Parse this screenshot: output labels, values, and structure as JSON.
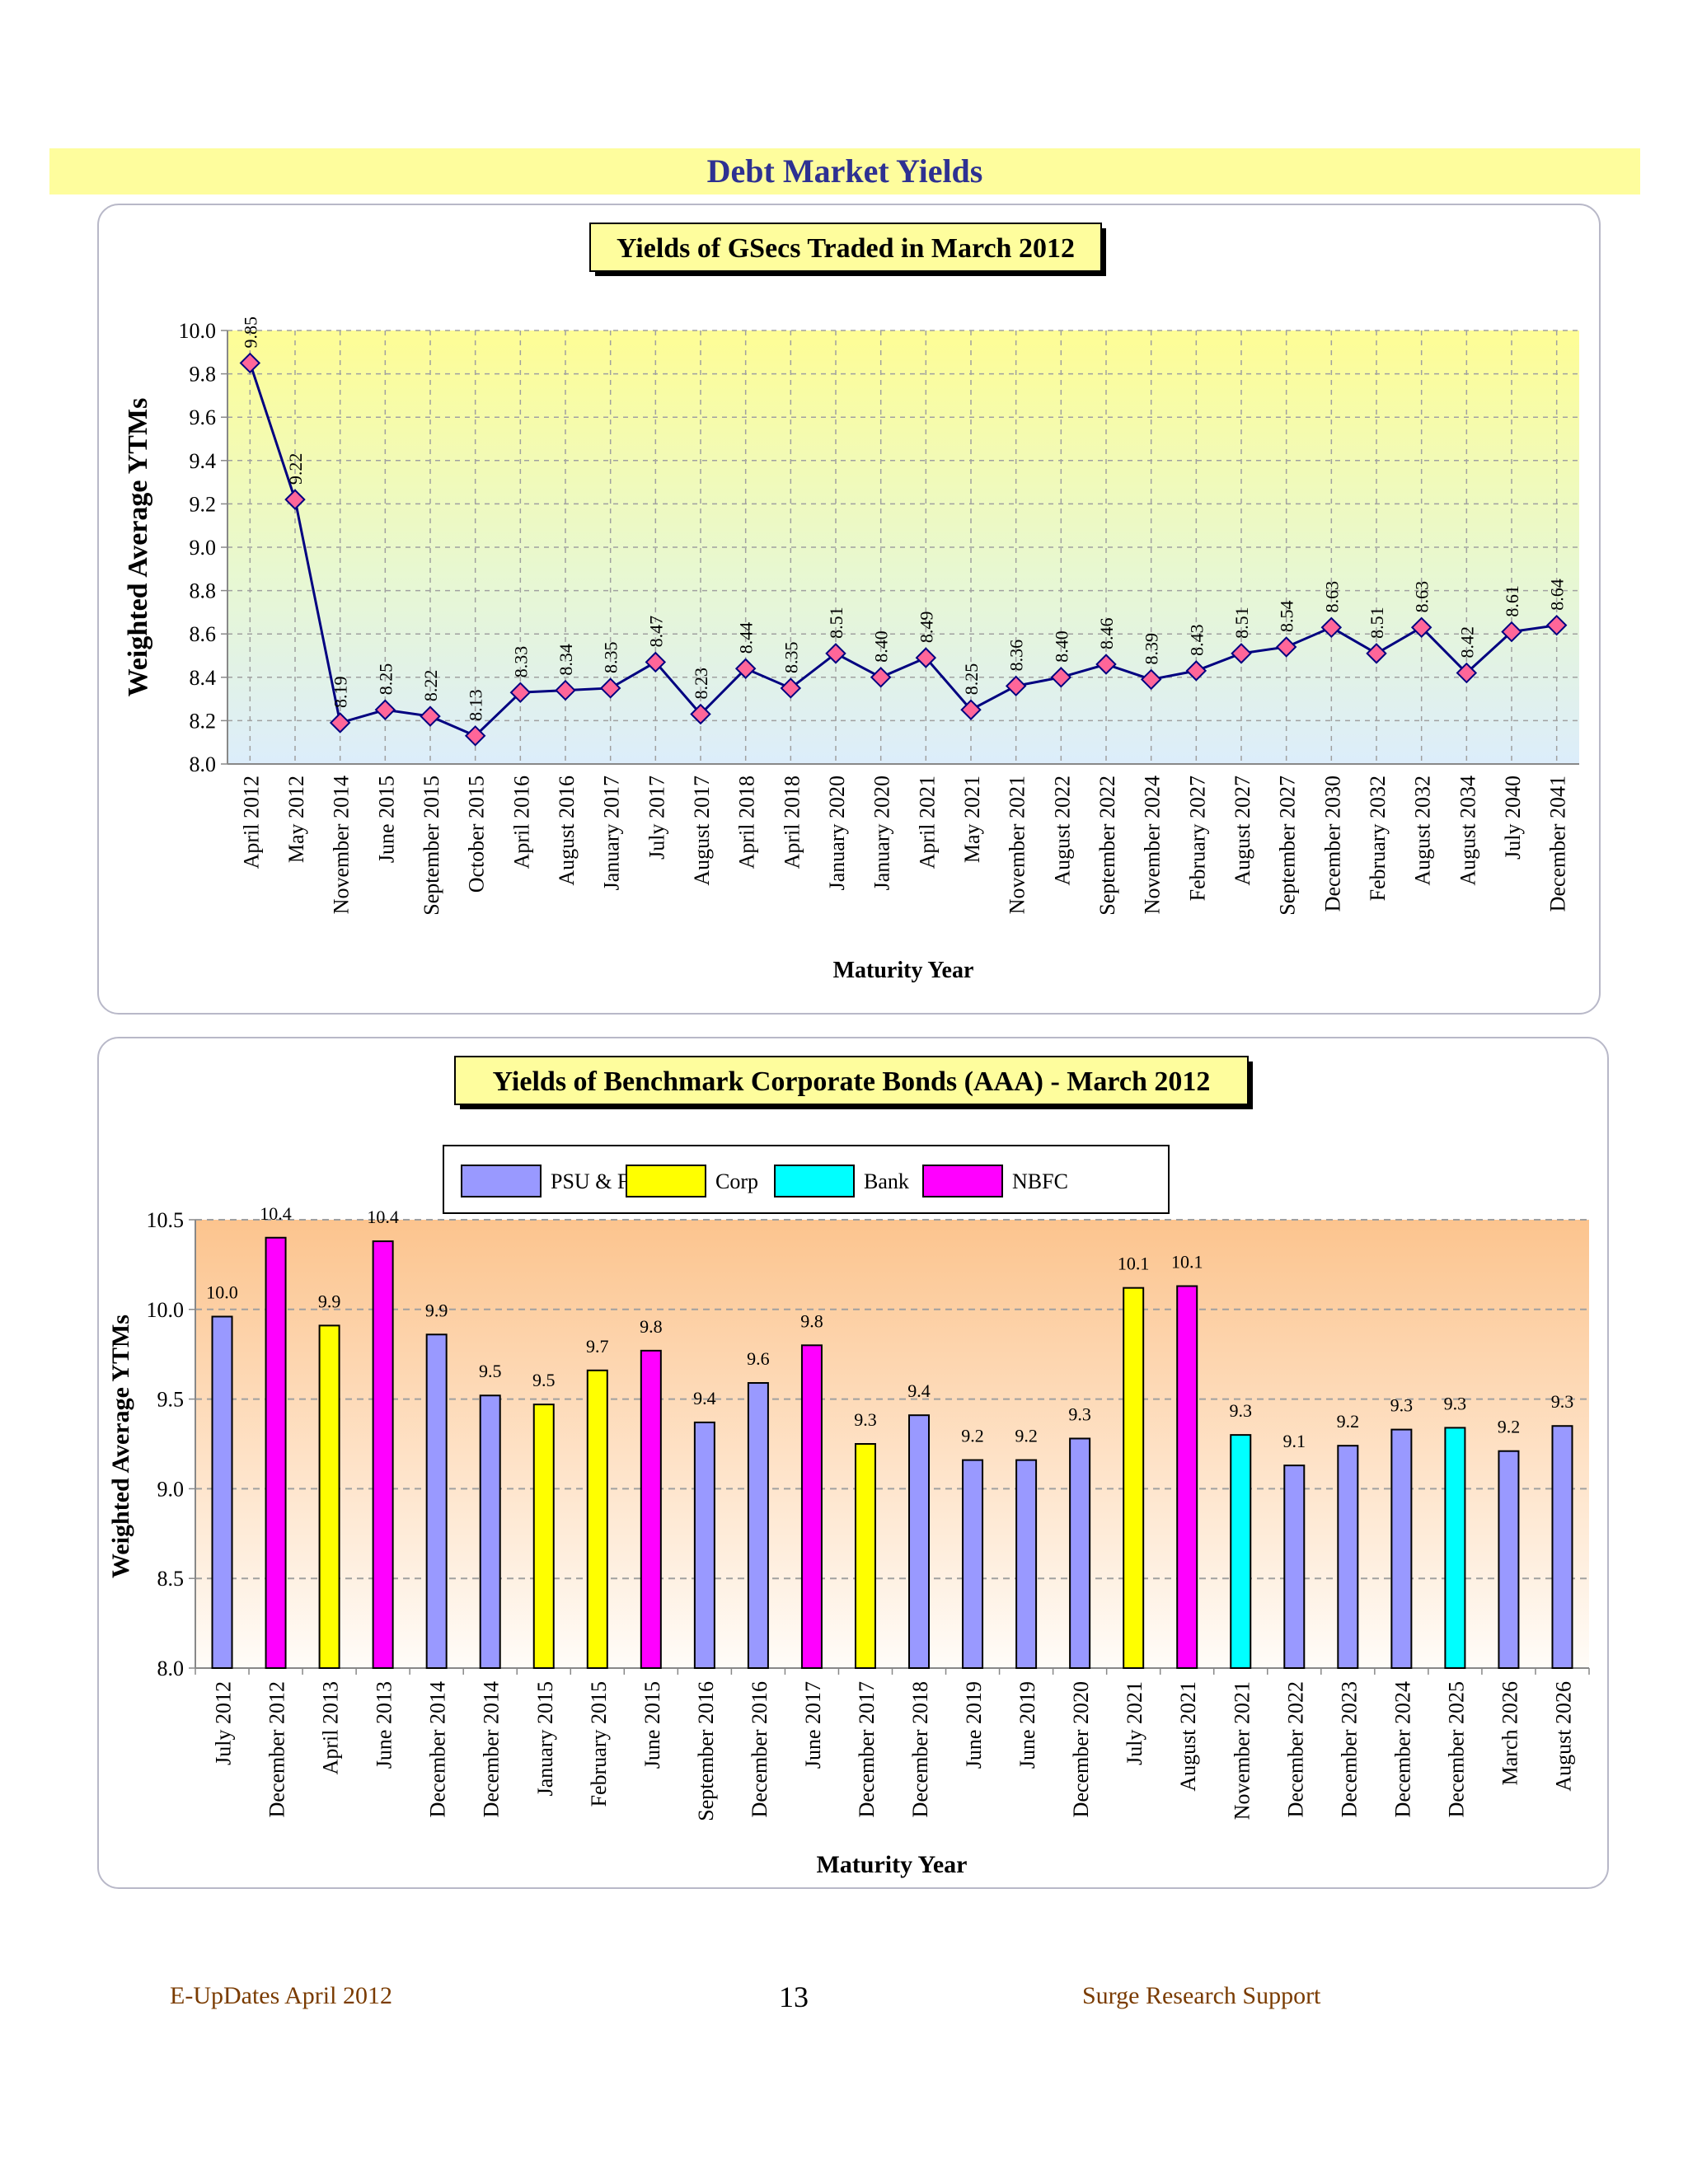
{
  "page": {
    "banner_title": "Debt Market Yields",
    "footer_left": "E-UpDates April 2012",
    "page_number": "13",
    "footer_right": "Surge Research Support"
  },
  "colors": {
    "psu": "#9999ff",
    "corp": "#ffff00",
    "bank": "#00ffff",
    "nbfc": "#ff00ff",
    "line": "#000080",
    "marker": "#ff6699"
  },
  "chart_data": [
    {
      "type": "line",
      "title": "Yields of GSecs Traded in March 2012",
      "xlabel": "Maturity Year",
      "ylabel": "Weighted Average YTMs",
      "ylim": [
        8.0,
        10.0
      ],
      "yticks": [
        "8.0",
        "8.2",
        "8.4",
        "8.6",
        "8.8",
        "9.0",
        "9.2",
        "9.4",
        "9.6",
        "9.8",
        "10.0"
      ],
      "grid": true,
      "categories": [
        "April 2012",
        "May 2012",
        "November 2014",
        "June 2015",
        "September 2015",
        "October 2015",
        "April 2016",
        "August 2016",
        "January 2017",
        "July 2017",
        "August 2017",
        "April 2018",
        "April 2018",
        "January 2020",
        "January 2020",
        "April 2021",
        "May 2021",
        "November 2021",
        "August 2022",
        "September 2022",
        "November 2024",
        "February 2027",
        "August 2027",
        "September 2027",
        "December 2030",
        "February 2032",
        "August 2032",
        "August 2034",
        "July 2040",
        "December 2041"
      ],
      "values": [
        9.85,
        9.22,
        8.19,
        8.25,
        8.22,
        8.13,
        8.33,
        8.34,
        8.35,
        8.47,
        8.23,
        8.44,
        8.35,
        8.51,
        8.4,
        8.49,
        8.25,
        8.36,
        8.4,
        8.46,
        8.39,
        8.43,
        8.51,
        8.54,
        8.63,
        8.51,
        8.63,
        8.42,
        8.61,
        8.64
      ],
      "labels": [
        "9.85",
        "9.22",
        "8.19",
        "8.25",
        "8.22",
        "8.13",
        "8.33",
        "8.34",
        "8.35",
        "8.47",
        "8.23",
        "8.44",
        "8.35",
        "8.51",
        "8.40",
        "8.49",
        "8.25",
        "8.36",
        "8.40",
        "8.46",
        "8.39",
        "8.43",
        "8.51",
        "8.54",
        "8.63",
        "8.51",
        "8.63",
        "8.42",
        "8.61",
        "8.64"
      ]
    },
    {
      "type": "bar",
      "title": "Yields of Benchmark Corporate Bonds (AAA) - March 2012",
      "xlabel": "Maturity Year",
      "ylabel": "Weighted Average YTMs",
      "ylim": [
        8.0,
        10.5
      ],
      "yticks": [
        "8.0",
        "8.5",
        "9.0",
        "9.5",
        "10.0",
        "10.5"
      ],
      "grid": true,
      "legend_position": "top-center",
      "legend": [
        {
          "key": "psu",
          "name": "PSU & FI's"
        },
        {
          "key": "corp",
          "name": "Corp"
        },
        {
          "key": "bank",
          "name": "Bank"
        },
        {
          "key": "nbfc",
          "name": "NBFC"
        }
      ],
      "categories": [
        "July 2012",
        "December 2012",
        "April 2013",
        "June 2013",
        "December 2014",
        "December 2014",
        "January 2015",
        "February 2015",
        "June 2015",
        "September 2016",
        "December 2016",
        "June 2017",
        "December 2017",
        "December 2018",
        "June 2019",
        "June 2019",
        "December 2020",
        "July 2021",
        "August 2021",
        "November 2021",
        "December 2022",
        "December 2023",
        "December 2024",
        "December 2025",
        "March 2026",
        "August 2026"
      ],
      "values": [
        9.96,
        10.4,
        9.91,
        10.38,
        9.86,
        9.52,
        9.47,
        9.66,
        9.77,
        9.37,
        9.59,
        9.8,
        9.25,
        9.41,
        9.16,
        9.16,
        9.28,
        10.12,
        10.13,
        9.3,
        9.13,
        9.24,
        9.33,
        9.34,
        9.21,
        9.35
      ],
      "labels": [
        "10.0",
        "10.4",
        "9.9",
        "10.4",
        "9.9",
        "9.5",
        "9.5",
        "9.7",
        "9.8",
        "9.4",
        "9.6",
        "9.8",
        "9.3",
        "9.4",
        "9.2",
        "9.2",
        "9.3",
        "10.1",
        "10.1",
        "9.3",
        "9.1",
        "9.2",
        "9.3",
        "9.3",
        "9.2",
        "9.3"
      ],
      "groups": [
        "psu",
        "nbfc",
        "corp",
        "nbfc",
        "psu",
        "psu",
        "corp",
        "corp",
        "nbfc",
        "psu",
        "psu",
        "nbfc",
        "corp",
        "psu",
        "psu",
        "psu",
        "psu",
        "corp",
        "nbfc",
        "bank",
        "psu",
        "psu",
        "psu",
        "bank",
        "psu",
        "psu"
      ]
    }
  ]
}
